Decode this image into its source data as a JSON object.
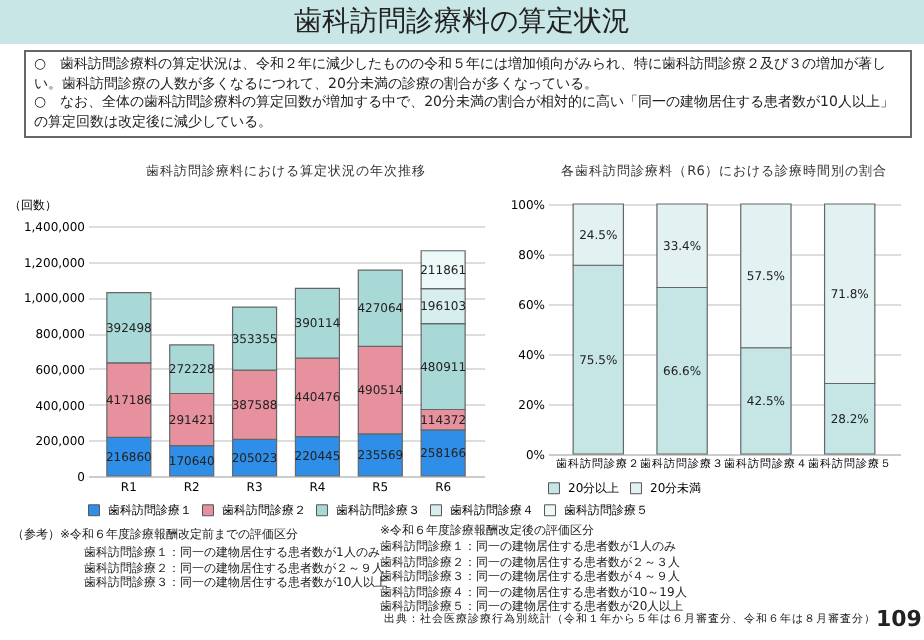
{
  "chart_data": [
    {
      "type": "bar",
      "title": "歯科訪問診療料における算定状況の年次推移",
      "ylabel": "（回数）",
      "stacked": true,
      "categories": [
        "R1",
        "R2",
        "R3",
        "R4",
        "R5",
        "R6"
      ],
      "series": [
        {
          "name": "歯科訪問診療１",
          "color": "#2f8fe8",
          "values": [
            216860,
            170640,
            205023,
            220445,
            235569,
            258166
          ]
        },
        {
          "name": "歯科訪問診療２",
          "color": "#e7909e",
          "values": [
            417186,
            291421,
            387588,
            440476,
            490514,
            114372
          ]
        },
        {
          "name": "歯科訪問診療３",
          "color": "#a9d9d6",
          "values": [
            392498,
            272228,
            353355,
            390114,
            427064,
            480911
          ]
        },
        {
          "name": "歯科訪問診療４",
          "color": "#d6eeee",
          "values": [
            null,
            null,
            null,
            null,
            null,
            196103
          ]
        },
        {
          "name": "歯科訪問診療５",
          "color": "#edf8f8",
          "values": [
            null,
            null,
            null,
            null,
            null,
            211861
          ]
        }
      ],
      "ylim": [
        0,
        1400000
      ],
      "yticks": [
        {
          "value": 0,
          "label": "0"
        },
        {
          "value": 200000,
          "label": "200,000"
        },
        {
          "value": 400000,
          "label": "400,000"
        },
        {
          "value": 600000,
          "label": "600,000"
        },
        {
          "value": 800000,
          "label": "800,000"
        },
        {
          "value": 1000000,
          "label": "1,000,000"
        },
        {
          "value": 1200000,
          "label": "1,200,000"
        },
        {
          "value": 1400000,
          "label": "1,400,000"
        }
      ],
      "grid": "y",
      "legend": "bottom",
      "data_labels": true,
      "annotations": [
        "歯科訪問診療料の算定状況",
        "○　歯科訪問診療料の算定状況は、令和２年に減少したものの令和５年には増加傾向がみられ、特に歯科訪問診療２及び３の増加が著しい。歯科訪問診療の人数が多くなるにつれて、20分未満の診療の割合が多くなっている。",
        "○　なお、全体の歯科訪問診療料の算定回数が増加する中で、20分未満の割合が相対的に高い「同一の建物居住する患者数が10人以上」の算定回数は改定後に減少している。",
        "（参考）",
        "※令和６年度診療報酬改定前までの評価区分",
        "歯科訪問診療１：同一の建物居住する患者数が1人のみ",
        "歯科訪問診療２：同一の建物居住する患者数が２～９人",
        "歯科訪問診療３：同一の建物居住する患者数が10人以上"
      ]
    },
    {
      "type": "bar",
      "title": "各歯科訪問診療料（R6）における診療時間別の割合",
      "stacked": true,
      "categories": [
        "歯科訪問診療２",
        "歯科訪問診療３",
        "歯科訪問診療４",
        "歯科訪問診療５"
      ],
      "series": [
        {
          "name": "20分以上",
          "color": "#c6e6e6",
          "values": [
            75.5,
            66.6,
            42.5,
            28.2
          ],
          "value_labels": [
            "75.5%",
            "66.6%",
            "42.5%",
            "28.2%"
          ]
        },
        {
          "name": "20分未満",
          "color": "#e2f2f2",
          "values": [
            24.5,
            33.4,
            57.5,
            71.8
          ],
          "value_labels": [
            "24.5%",
            "33.4%",
            "57.5%",
            "71.8%"
          ]
        }
      ],
      "ylim": [
        0,
        100
      ],
      "yticks": [
        {
          "value": 0,
          "label": "0%"
        },
        {
          "value": 20,
          "label": "20%"
        },
        {
          "value": 40,
          "label": "40%"
        },
        {
          "value": 60,
          "label": "60%"
        },
        {
          "value": 80,
          "label": "80%"
        },
        {
          "value": 100,
          "label": "100%"
        }
      ],
      "grid": "y",
      "legend": "bottom",
      "annotations": [
        "※令和６年度診療報酬改定後の評価区分",
        "歯科訪問診療１：同一の建物居住する患者数が1人のみ",
        "歯科訪問診療２：同一の建物居住する患者数が２～３人",
        "歯科訪問診療３：同一の建物居住する患者数が４～９人",
        "歯科訪問診療４：同一の建物居住する患者数が10～19人",
        "歯科訪問診療５：同一の建物居住する患者数が20人以上",
        "出典：社会医療診療行為別統計（令和１年から５年は６月審査分、令和６年は８月審査分）",
        "109"
      ]
    }
  ]
}
